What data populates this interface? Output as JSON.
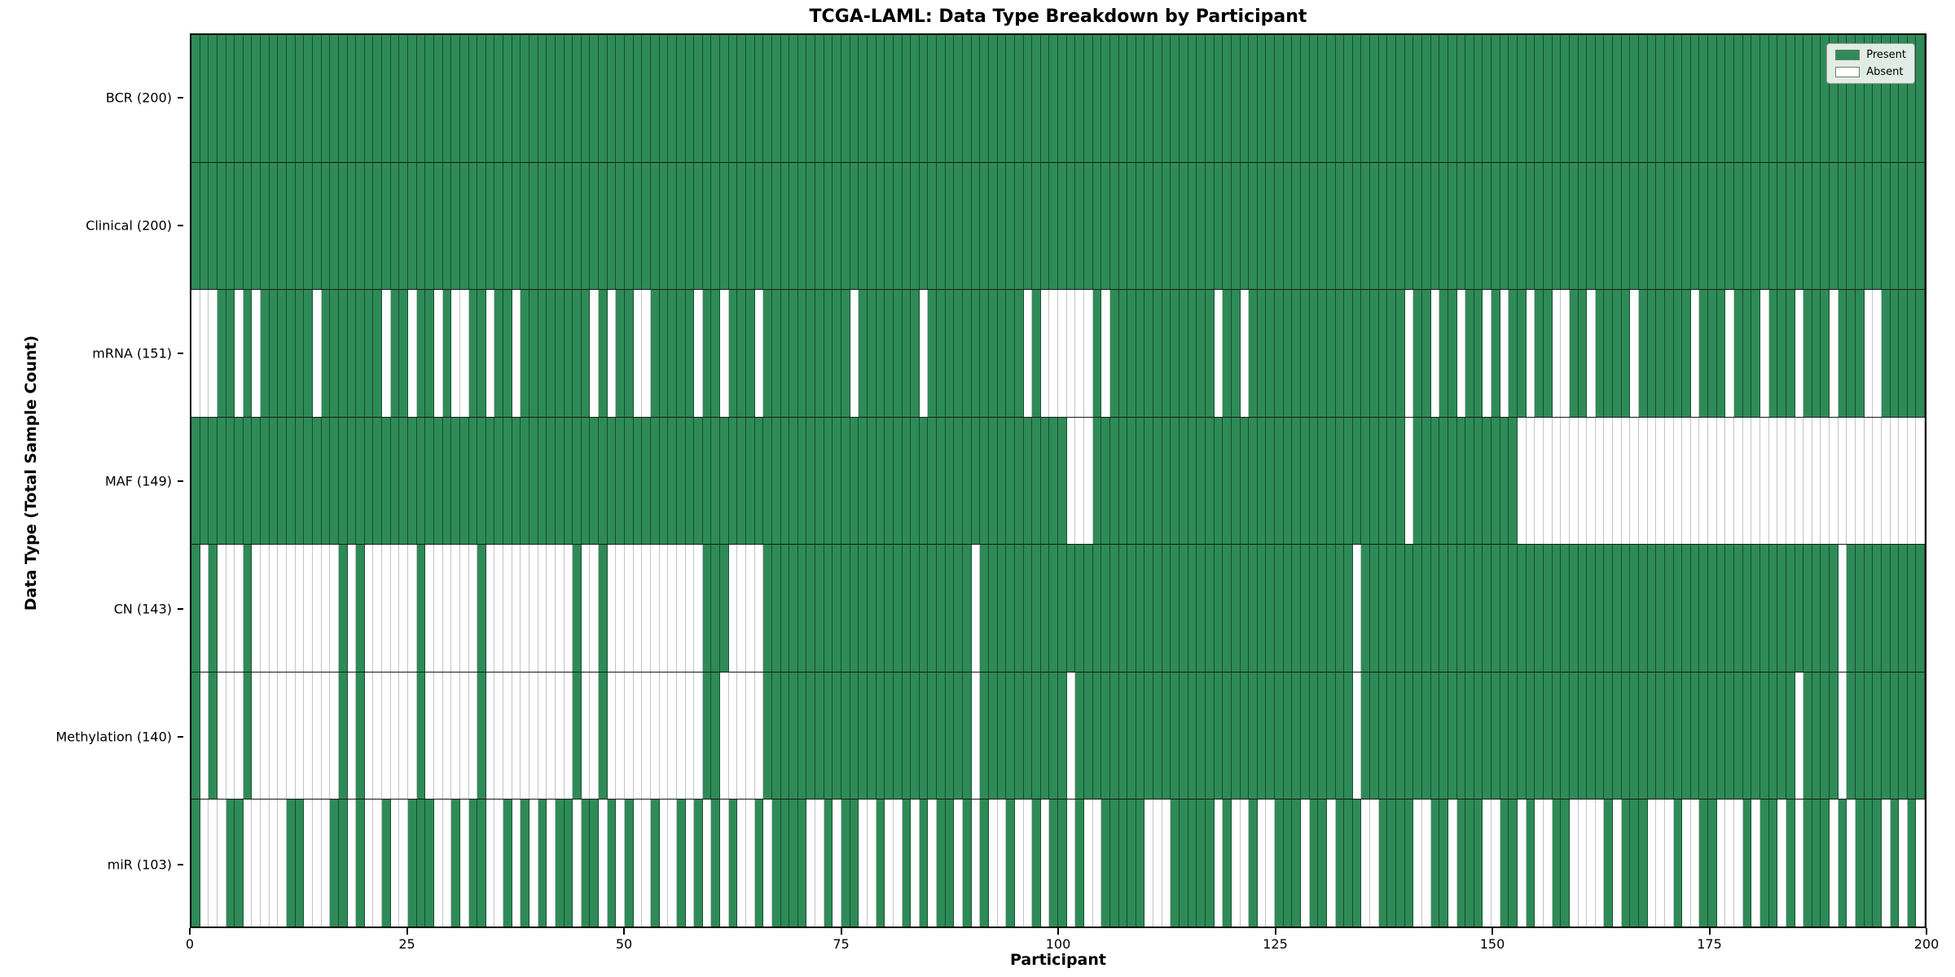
{
  "title": "TCGA-LAML: Data Type Breakdown by Participant",
  "xlabel": "Participant",
  "ylabel": "Data Type (Total Sample Count)",
  "legend": {
    "present_label": "Present",
    "absent_label": "Absent"
  },
  "chart_data": {
    "type": "heatmap",
    "title": "TCGA-LAML: Data Type Breakdown by Participant",
    "xlabel": "Participant",
    "ylabel": "Data Type (Total Sample Count)",
    "n_participants": 200,
    "x_ticks": [
      0,
      25,
      50,
      75,
      100,
      125,
      150,
      175,
      200
    ],
    "xlim": [
      0,
      200
    ],
    "grid": false,
    "legend_position": "upper-right",
    "colors": {
      "present": "#2e8b57",
      "absent": "#ffffff"
    },
    "legend": [
      {
        "label": "Present",
        "color": "#2e8b57"
      },
      {
        "label": "Absent",
        "color": "#ffffff"
      }
    ],
    "rows": [
      {
        "label": "BCR (200)",
        "data_type": "BCR",
        "present_count": 200,
        "absent_ranges": []
      },
      {
        "label": "Clinical (200)",
        "data_type": "Clinical",
        "present_count": 200,
        "absent_ranges": []
      },
      {
        "label": "mRNA (151)",
        "data_type": "mRNA",
        "present_count": 151,
        "absent_ranges": [
          [
            0,
            2
          ],
          [
            5,
            5
          ],
          [
            7,
            7
          ],
          [
            14,
            14
          ],
          [
            22,
            22
          ],
          [
            25,
            25
          ],
          [
            28,
            28
          ],
          [
            30,
            31
          ],
          [
            34,
            34
          ],
          [
            37,
            37
          ],
          [
            46,
            46
          ],
          [
            48,
            48
          ],
          [
            51,
            52
          ],
          [
            58,
            58
          ],
          [
            61,
            61
          ],
          [
            65,
            65
          ],
          [
            76,
            76
          ],
          [
            84,
            84
          ],
          [
            96,
            96
          ],
          [
            98,
            103
          ],
          [
            105,
            105
          ],
          [
            118,
            118
          ],
          [
            121,
            121
          ],
          [
            140,
            140
          ],
          [
            143,
            143
          ],
          [
            146,
            146
          ],
          [
            149,
            149
          ],
          [
            151,
            151
          ],
          [
            154,
            154
          ],
          [
            157,
            158
          ],
          [
            161,
            161
          ],
          [
            166,
            166
          ],
          [
            173,
            173
          ],
          [
            177,
            177
          ],
          [
            181,
            181
          ],
          [
            185,
            185
          ],
          [
            189,
            189
          ],
          [
            193,
            194
          ]
        ]
      },
      {
        "label": "MAF (149)",
        "data_type": "MAF",
        "present_count": 149,
        "absent_ranges": [
          [
            101,
            103
          ],
          [
            140,
            140
          ],
          [
            153,
            199
          ]
        ]
      },
      {
        "label": "CN (143)",
        "data_type": "CN",
        "present_count": 143,
        "absent_ranges": [
          [
            1,
            1
          ],
          [
            3,
            5
          ],
          [
            7,
            16
          ],
          [
            18,
            18
          ],
          [
            20,
            25
          ],
          [
            27,
            32
          ],
          [
            34,
            43
          ],
          [
            45,
            46
          ],
          [
            48,
            58
          ],
          [
            62,
            65
          ],
          [
            90,
            90
          ],
          [
            134,
            134
          ],
          [
            190,
            190
          ]
        ]
      },
      {
        "label": "Methylation (140)",
        "data_type": "Methylation",
        "present_count": 140,
        "absent_ranges": [
          [
            1,
            1
          ],
          [
            3,
            5
          ],
          [
            7,
            16
          ],
          [
            18,
            18
          ],
          [
            20,
            25
          ],
          [
            27,
            32
          ],
          [
            34,
            43
          ],
          [
            45,
            46
          ],
          [
            48,
            58
          ],
          [
            61,
            65
          ],
          [
            90,
            90
          ],
          [
            101,
            101
          ],
          [
            134,
            134
          ],
          [
            185,
            185
          ],
          [
            190,
            190
          ]
        ]
      },
      {
        "label": "miR (103)",
        "data_type": "miR",
        "present_count": 103,
        "absent_ranges": [
          [
            1,
            3
          ],
          [
            6,
            10
          ],
          [
            13,
            15
          ],
          [
            18,
            18
          ],
          [
            20,
            21
          ],
          [
            23,
            24
          ],
          [
            28,
            29
          ],
          [
            31,
            31
          ],
          [
            34,
            35
          ],
          [
            37,
            37
          ],
          [
            39,
            39
          ],
          [
            41,
            41
          ],
          [
            44,
            44
          ],
          [
            47,
            47
          ],
          [
            49,
            49
          ],
          [
            51,
            52
          ],
          [
            54,
            55
          ],
          [
            57,
            57
          ],
          [
            59,
            59
          ],
          [
            61,
            61
          ],
          [
            63,
            64
          ],
          [
            66,
            66
          ],
          [
            71,
            72
          ],
          [
            74,
            74
          ],
          [
            77,
            78
          ],
          [
            80,
            81
          ],
          [
            83,
            83
          ],
          [
            85,
            85
          ],
          [
            88,
            88
          ],
          [
            90,
            90
          ],
          [
            92,
            93
          ],
          [
            95,
            96
          ],
          [
            98,
            98
          ],
          [
            101,
            101
          ],
          [
            103,
            104
          ],
          [
            110,
            112
          ],
          [
            118,
            118
          ],
          [
            120,
            121
          ],
          [
            123,
            124
          ],
          [
            128,
            128
          ],
          [
            131,
            131
          ],
          [
            135,
            136
          ],
          [
            141,
            142
          ],
          [
            145,
            145
          ],
          [
            149,
            150
          ],
          [
            153,
            153
          ],
          [
            155,
            156
          ],
          [
            159,
            162
          ],
          [
            164,
            164
          ],
          [
            168,
            170
          ],
          [
            172,
            173
          ],
          [
            176,
            178
          ],
          [
            180,
            180
          ],
          [
            183,
            183
          ],
          [
            185,
            185
          ],
          [
            189,
            189
          ],
          [
            191,
            191
          ],
          [
            195,
            195
          ],
          [
            197,
            197
          ],
          [
            199,
            199
          ]
        ]
      }
    ]
  }
}
